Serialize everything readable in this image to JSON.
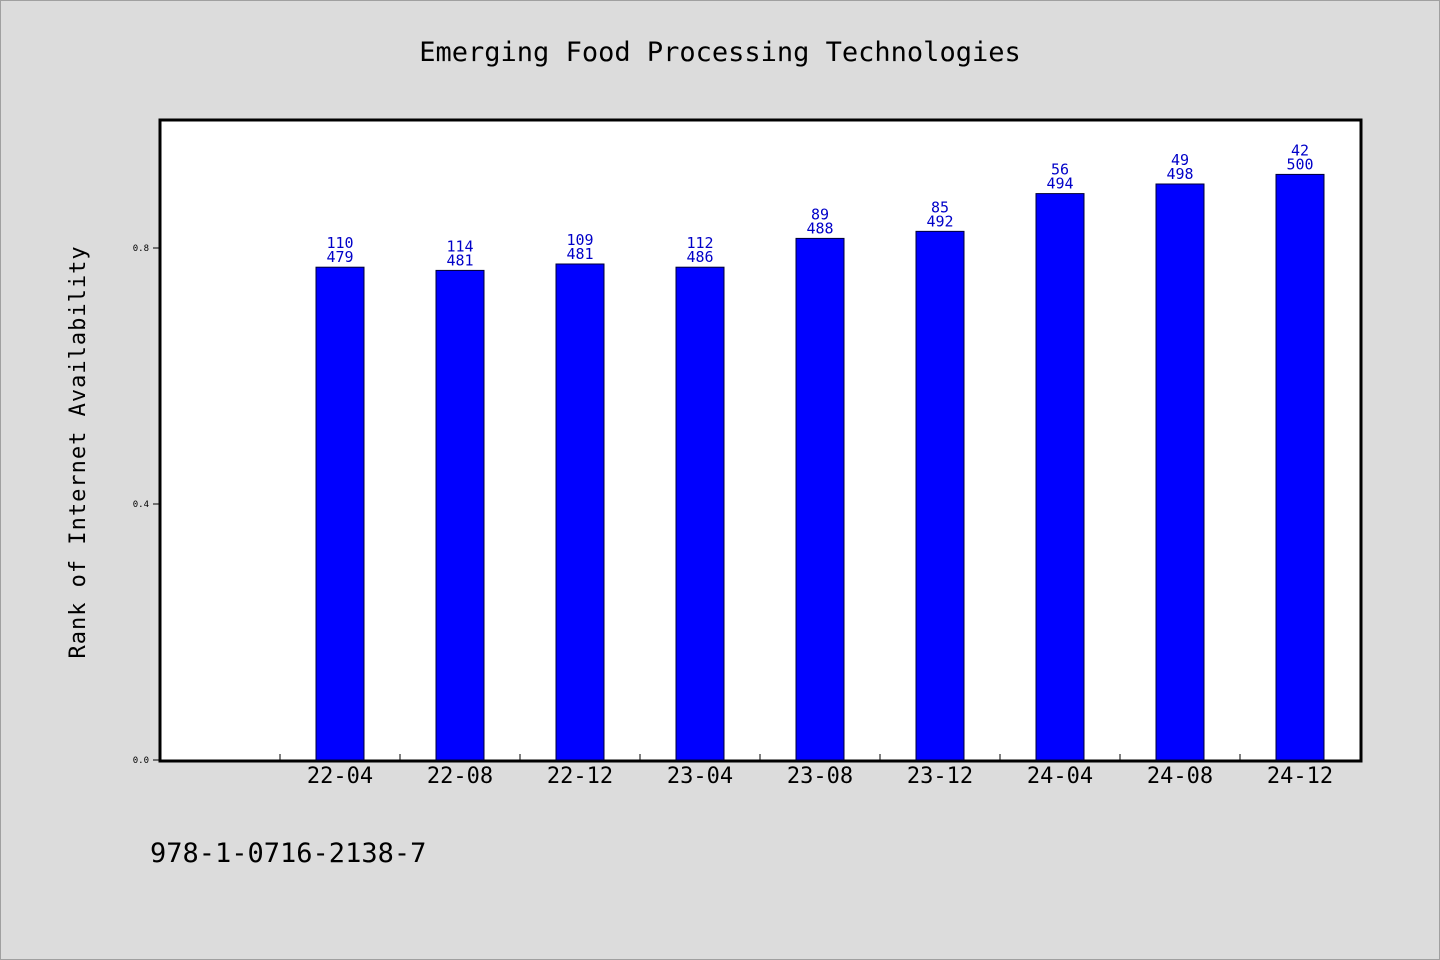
{
  "chart_data": {
    "type": "bar",
    "title": "Emerging Food Processing Technologies",
    "xlabel": "",
    "ylabel": "Rank of Internet Availability",
    "categories": [
      "22-04",
      "22-08",
      "22-12",
      "23-04",
      "23-08",
      "23-12",
      "24-04",
      "24-08",
      "24-12"
    ],
    "values": [
      0.77,
      0.765,
      0.775,
      0.77,
      0.815,
      0.826,
      0.885,
      0.9,
      0.915
    ],
    "labels_top": [
      "110",
      "114",
      "109",
      "112",
      "89",
      "85",
      "56",
      "49",
      "42"
    ],
    "labels_bottom": [
      "479",
      "481",
      "481",
      "486",
      "488",
      "492",
      "494",
      "498",
      "500"
    ],
    "yticks": [
      0.0,
      0.4,
      0.8
    ],
    "ytick_labels": [
      "0.0",
      "0.4",
      "0.8"
    ],
    "ylim": [
      0,
      1.0
    ],
    "grid": false,
    "legend": "none",
    "bar_color": "#0000ff",
    "label_color": "#0000c8"
  },
  "footer": {
    "isbn": "978-1-0716-2138-7"
  }
}
